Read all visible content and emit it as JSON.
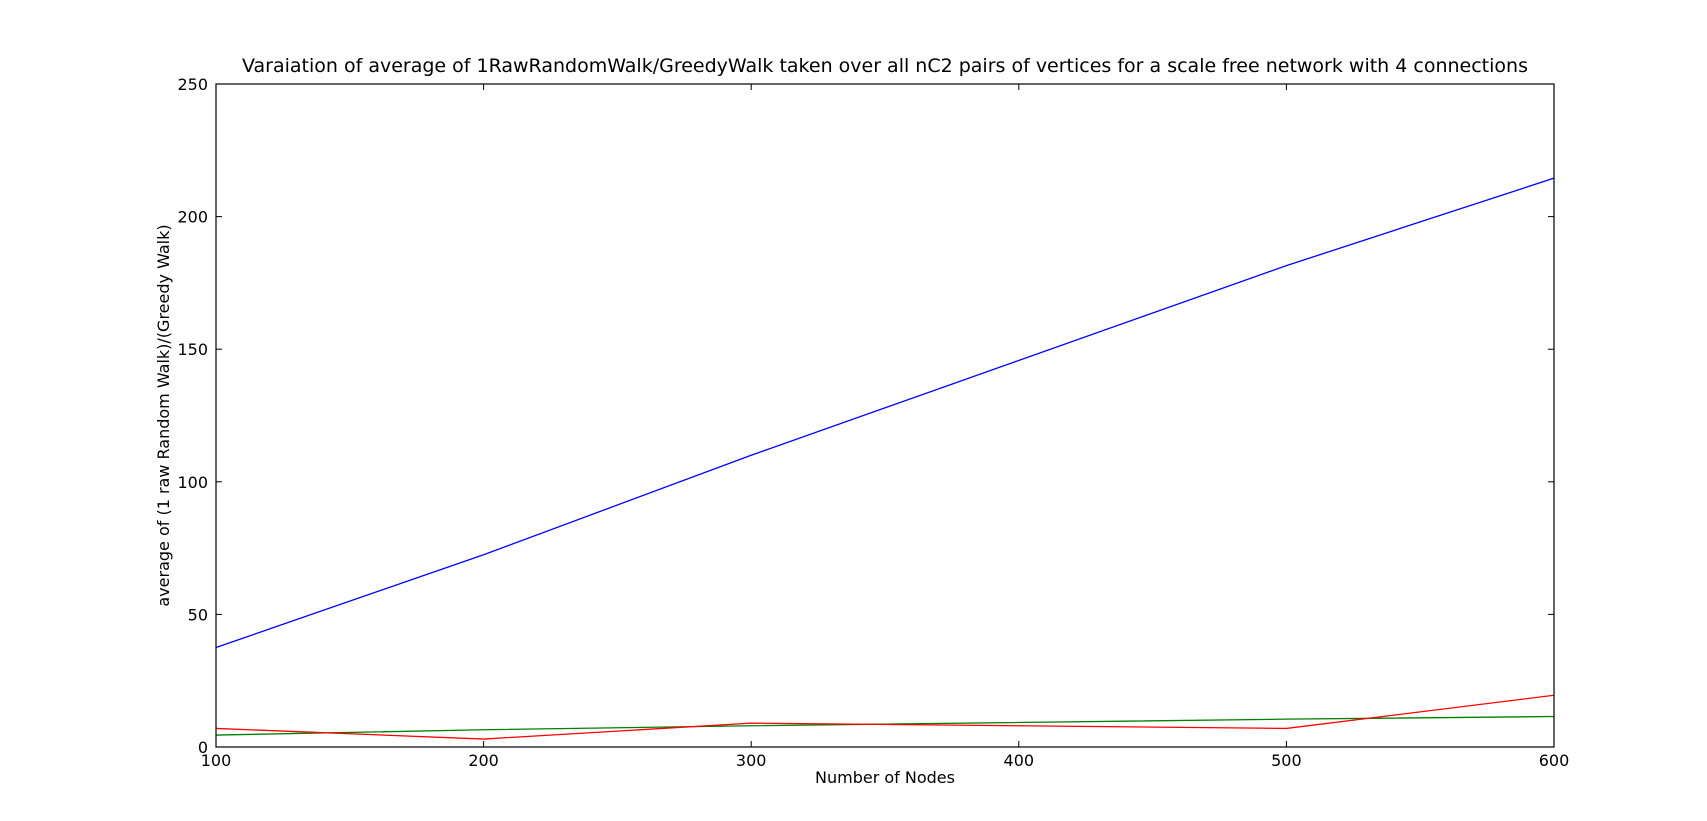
{
  "chart_data": {
    "type": "line",
    "title": "Varaiation of average of 1RawRandomWalk/GreedyWalk taken over all nC2 pairs of vertices for a scale free network with 4 connections",
    "xlabel": "Number of Nodes",
    "ylabel": "average of (1 raw Random Walk)/(Greedy Walk)",
    "xlim": [
      100,
      600
    ],
    "ylim": [
      0,
      250
    ],
    "xticks": [
      100,
      200,
      300,
      400,
      500,
      600
    ],
    "yticks": [
      0,
      50,
      100,
      150,
      200,
      250
    ],
    "xtick_labels": [
      "100",
      "200",
      "300",
      "400",
      "500",
      "600"
    ],
    "ytick_labels": [
      "0",
      "50",
      "100",
      "150",
      "200",
      "250"
    ],
    "grid": false,
    "series": [
      {
        "color": "#0000ff",
        "x": [
          100,
          200,
          300,
          500,
          600
        ],
        "y": [
          37.5,
          72.5,
          110,
          181.5,
          214.5
        ]
      },
      {
        "color": "#008000",
        "x": [
          100,
          200,
          300,
          500,
          600
        ],
        "y": [
          4.5,
          6.5,
          8,
          10.5,
          11.5
        ]
      },
      {
        "color": "#ff0000",
        "x": [
          100,
          200,
          300,
          500,
          600
        ],
        "y": [
          7,
          3,
          9,
          7,
          19.5
        ]
      }
    ]
  }
}
